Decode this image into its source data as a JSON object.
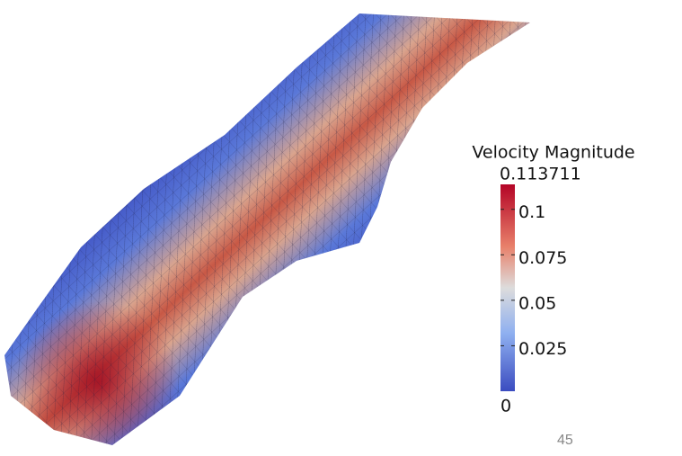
{
  "colorbar": {
    "title": "Velocity Magnitude",
    "min": 0,
    "max": 0.113711,
    "ticks": [
      0.1,
      0.075,
      0.05,
      0.025
    ]
  },
  "page_number": "45"
}
